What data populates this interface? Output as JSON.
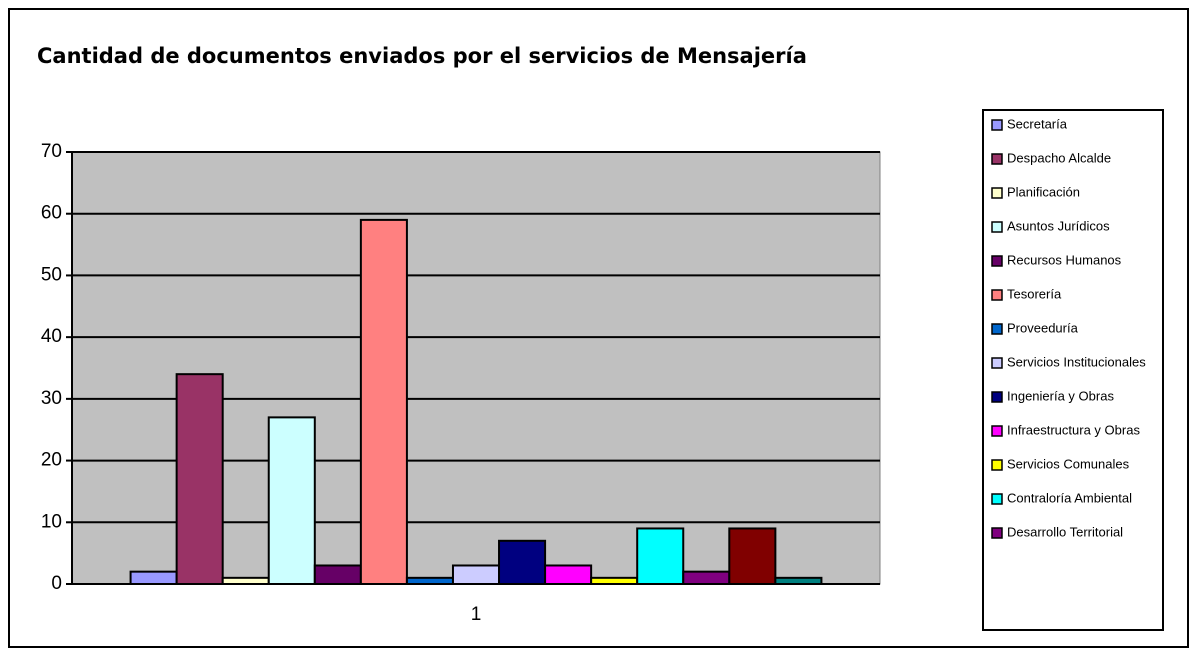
{
  "chart_data": {
    "type": "bar",
    "title": "Cantidad de documentos enviados por el servicios de Mensajería",
    "categories": [
      "1"
    ],
    "ylim": [
      0,
      70
    ],
    "yticks": [
      0,
      10,
      20,
      30,
      40,
      50,
      60,
      70
    ],
    "grid": true,
    "series": [
      {
        "name": "Secretaría",
        "color": "#9999ff",
        "values": [
          2
        ]
      },
      {
        "name": "Despacho Alcalde",
        "color": "#993366",
        "values": [
          34
        ]
      },
      {
        "name": "Planificación",
        "color": "#ffffcc",
        "values": [
          1
        ]
      },
      {
        "name": "Asuntos Jurídicos",
        "color": "#ccffff",
        "values": [
          27
        ]
      },
      {
        "name": "Recursos Humanos",
        "color": "#660066",
        "values": [
          3
        ]
      },
      {
        "name": "Tesorería",
        "color": "#ff8080",
        "values": [
          59
        ]
      },
      {
        "name": "Proveeduría",
        "color": "#0066cc",
        "values": [
          1
        ]
      },
      {
        "name": "Servicios Institucionales",
        "color": "#ccccff",
        "values": [
          3
        ]
      },
      {
        "name": "Ingeniería y Obras",
        "color": "#000080",
        "values": [
          7
        ]
      },
      {
        "name": "Infraestructura y Obras",
        "color": "#ff00ff",
        "values": [
          3
        ]
      },
      {
        "name": "Servicios Comunales",
        "color": "#ffff00",
        "values": [
          1
        ]
      },
      {
        "name": "Contraloría Ambiental",
        "color": "#00ffff",
        "values": [
          9
        ]
      },
      {
        "name": "Desarrollo Territorial",
        "color": "#800080",
        "values": [
          2
        ]
      },
      {
        "name": null,
        "color": "#800000",
        "values": [
          9
        ]
      },
      {
        "name": null,
        "color": "#008080",
        "values": [
          1
        ]
      }
    ]
  }
}
